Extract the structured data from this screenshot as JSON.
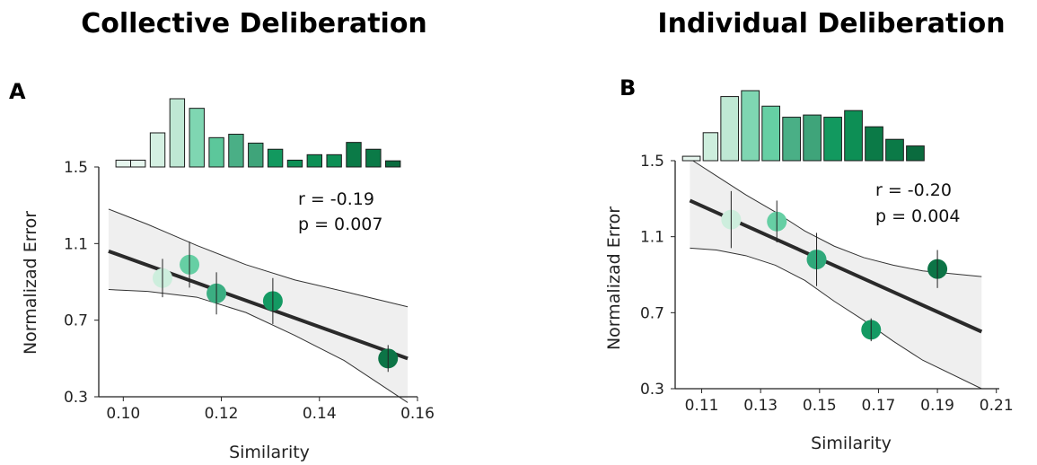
{
  "chart_data": [
    {
      "type": "scatter",
      "title": "Collective Deliberation",
      "panel_label": "A",
      "xlabel": "Similarity",
      "ylabel": "Normalizad Error",
      "xlim": [
        0.095,
        0.16
      ],
      "ylim": [
        0.3,
        1.5
      ],
      "x_ticks": [
        0.1,
        0.12,
        0.14,
        0.16
      ],
      "x_tick_labels": [
        "0.10",
        "0.12",
        "0.14",
        "0.16"
      ],
      "y_ticks": [
        0.3,
        0.7,
        1.1,
        1.5
      ],
      "y_tick_labels": [
        "0.3",
        "0.7",
        "1.1",
        "1.5"
      ],
      "stats": {
        "r": "r = -0.19",
        "p": "p = 0.007"
      },
      "points": [
        {
          "x": 0.108,
          "y": 0.92,
          "err": 0.1,
          "color": "#cdeedd"
        },
        {
          "x": 0.1135,
          "y": 0.99,
          "err": 0.12,
          "color": "#66cfa4"
        },
        {
          "x": 0.119,
          "y": 0.84,
          "err": 0.11,
          "color": "#3bae82"
        },
        {
          "x": 0.1305,
          "y": 0.8,
          "err": 0.12,
          "color": "#149a63"
        },
        {
          "x": 0.154,
          "y": 0.5,
          "err": 0.07,
          "color": "#0c7446"
        }
      ],
      "fit": {
        "x": [
          0.097,
          0.158
        ],
        "y": [
          1.06,
          0.5
        ]
      },
      "ci_upper": [
        [
          0.097,
          1.28
        ],
        [
          0.105,
          1.2
        ],
        [
          0.115,
          1.09
        ],
        [
          0.125,
          0.99
        ],
        [
          0.135,
          0.91
        ],
        [
          0.145,
          0.85
        ],
        [
          0.158,
          0.77
        ]
      ],
      "ci_lower": [
        [
          0.097,
          0.86
        ],
        [
          0.105,
          0.85
        ],
        [
          0.115,
          0.82
        ],
        [
          0.125,
          0.74
        ],
        [
          0.135,
          0.62
        ],
        [
          0.145,
          0.49
        ],
        [
          0.158,
          0.27
        ]
      ],
      "histogram": {
        "bins": [
          {
            "x0": 0.0985,
            "x1": 0.1015,
            "count": 1,
            "color": "#e6f6ee"
          },
          {
            "x0": 0.1015,
            "x1": 0.1045,
            "count": 1,
            "color": "#e6f6ee"
          },
          {
            "x0": 0.1055,
            "x1": 0.1085,
            "count": 5,
            "color": "#d4f0e2"
          },
          {
            "x0": 0.1095,
            "x1": 0.1125,
            "count": 10,
            "color": "#bfe8d4"
          },
          {
            "x0": 0.1135,
            "x1": 0.1165,
            "count": 8.6,
            "color": "#7fd6b2"
          },
          {
            "x0": 0.1175,
            "x1": 0.1205,
            "count": 4.3,
            "color": "#5cc79b"
          },
          {
            "x0": 0.1215,
            "x1": 0.1245,
            "count": 4.8,
            "color": "#4aaf86"
          },
          {
            "x0": 0.1255,
            "x1": 0.1285,
            "count": 3.5,
            "color": "#3fa47a"
          },
          {
            "x0": 0.1295,
            "x1": 0.1325,
            "count": 2.6,
            "color": "#12995f"
          },
          {
            "x0": 0.1335,
            "x1": 0.1365,
            "count": 1,
            "color": "#0d8f55"
          },
          {
            "x0": 0.1375,
            "x1": 0.1405,
            "count": 1.8,
            "color": "#0d8f55"
          },
          {
            "x0": 0.1415,
            "x1": 0.1445,
            "count": 1.8,
            "color": "#0d8f55"
          },
          {
            "x0": 0.1455,
            "x1": 0.1485,
            "count": 3.6,
            "color": "#0b7a47"
          },
          {
            "x0": 0.1495,
            "x1": 0.1525,
            "count": 2.6,
            "color": "#0b7a47"
          },
          {
            "x0": 0.1535,
            "x1": 0.1565,
            "count": 0.9,
            "color": "#0a6b3e"
          }
        ]
      },
      "grid": false
    },
    {
      "type": "scatter",
      "title": "Individual Deliberation",
      "panel_label": "B",
      "xlabel": "Similarity",
      "ylabel": "Normalizad Error",
      "xlim": [
        0.101,
        0.211
      ],
      "ylim": [
        0.3,
        1.5
      ],
      "x_ticks": [
        0.11,
        0.13,
        0.15,
        0.17,
        0.19,
        0.21
      ],
      "x_tick_labels": [
        "0.11",
        "0.13",
        "0.15",
        "0.17",
        "0.19",
        "0.21"
      ],
      "y_ticks": [
        0.3,
        0.7,
        1.1,
        1.5
      ],
      "y_tick_labels": [
        "0.3",
        "0.7",
        "1.1",
        "1.5"
      ],
      "stats": {
        "r": "r = -0.20",
        "p": "p = 0.004"
      },
      "points": [
        {
          "x": 0.12,
          "y": 1.19,
          "err": 0.15,
          "color": "#cdeedd"
        },
        {
          "x": 0.1355,
          "y": 1.18,
          "err": 0.11,
          "color": "#66cfa4"
        },
        {
          "x": 0.149,
          "y": 0.98,
          "err": 0.14,
          "color": "#2fa87a"
        },
        {
          "x": 0.1675,
          "y": 0.61,
          "err": 0.06,
          "color": "#149a63"
        },
        {
          "x": 0.19,
          "y": 0.93,
          "err": 0.1,
          "color": "#0c7446"
        }
      ],
      "fit": {
        "x": [
          0.106,
          0.205
        ],
        "y": [
          1.29,
          0.6
        ]
      },
      "ci_upper": [
        [
          0.106,
          1.51
        ],
        [
          0.115,
          1.42
        ],
        [
          0.125,
          1.32
        ],
        [
          0.135,
          1.23
        ],
        [
          0.145,
          1.13
        ],
        [
          0.155,
          1.05
        ],
        [
          0.165,
          0.99
        ],
        [
          0.175,
          0.95
        ],
        [
          0.185,
          0.92
        ],
        [
          0.205,
          0.89
        ]
      ],
      "ci_lower": [
        [
          0.106,
          1.04
        ],
        [
          0.115,
          1.03
        ],
        [
          0.125,
          1.0
        ],
        [
          0.135,
          0.95
        ],
        [
          0.145,
          0.87
        ],
        [
          0.155,
          0.76
        ],
        [
          0.165,
          0.66
        ],
        [
          0.175,
          0.55
        ],
        [
          0.185,
          0.45
        ],
        [
          0.205,
          0.3
        ]
      ],
      "histogram": {
        "bins": [
          {
            "x0": 0.1035,
            "x1": 0.1095,
            "count": 0.6,
            "color": "#e6f6ee"
          },
          {
            "x0": 0.1105,
            "x1": 0.1155,
            "count": 3.8,
            "color": "#cdeedd"
          },
          {
            "x0": 0.1165,
            "x1": 0.1225,
            "count": 8.7,
            "color": "#bfe8d4"
          },
          {
            "x0": 0.1235,
            "x1": 0.1295,
            "count": 9.5,
            "color": "#7fd6b2"
          },
          {
            "x0": 0.1305,
            "x1": 0.1365,
            "count": 7.4,
            "color": "#66cfa4"
          },
          {
            "x0": 0.1375,
            "x1": 0.1435,
            "count": 5.9,
            "color": "#4aaf86"
          },
          {
            "x0": 0.1445,
            "x1": 0.1505,
            "count": 6.2,
            "color": "#3fa47a"
          },
          {
            "x0": 0.1515,
            "x1": 0.1575,
            "count": 5.9,
            "color": "#12995f"
          },
          {
            "x0": 0.1585,
            "x1": 0.1645,
            "count": 6.8,
            "color": "#0d8f55"
          },
          {
            "x0": 0.1655,
            "x1": 0.1715,
            "count": 4.6,
            "color": "#0b7a47"
          },
          {
            "x0": 0.1725,
            "x1": 0.1785,
            "count": 2.9,
            "color": "#0b7a47"
          },
          {
            "x0": 0.1795,
            "x1": 0.1855,
            "count": 2.0,
            "color": "#0a6b3e"
          }
        ]
      },
      "grid": false
    }
  ]
}
